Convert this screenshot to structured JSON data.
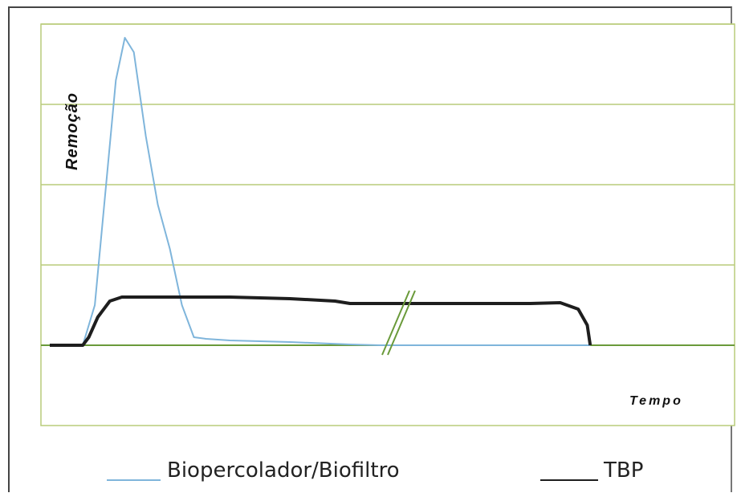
{
  "chart_data": {
    "type": "line",
    "xlabel": "Tempo",
    "ylabel": "Remoção",
    "xlim": [
      0,
      100
    ],
    "ylim": [
      -1,
      4
    ],
    "grid": true,
    "legend_placement": "bottom",
    "axis_break": true,
    "series": [
      {
        "name": "Biopercolador/Biofiltro",
        "color": "#7fb5db",
        "x": [
          0,
          5.5,
          7.5,
          9.5,
          11,
          12.5,
          14,
          16,
          18,
          20,
          22,
          24,
          26,
          28,
          30,
          40,
          50,
          55,
          70,
          85,
          90
        ],
        "y": [
          0,
          0,
          0.5,
          2.1,
          3.3,
          3.83,
          3.65,
          2.6,
          1.75,
          1.2,
          0.5,
          0.1,
          0.08,
          0.07,
          0.06,
          0.04,
          0.01,
          0,
          0,
          0,
          0
        ]
      },
      {
        "name": "TBP",
        "color": "#1e1e1e",
        "x": [
          0,
          5.5,
          6.5,
          8,
          10,
          12,
          20,
          30,
          40,
          47.5,
          50,
          60,
          70,
          80,
          85,
          88,
          89.5,
          90
        ],
        "y": [
          0,
          0,
          0.1,
          0.35,
          0.55,
          0.6,
          0.6,
          0.6,
          0.58,
          0.55,
          0.52,
          0.52,
          0.52,
          0.52,
          0.53,
          0.45,
          0.25,
          0
        ]
      }
    ]
  }
}
